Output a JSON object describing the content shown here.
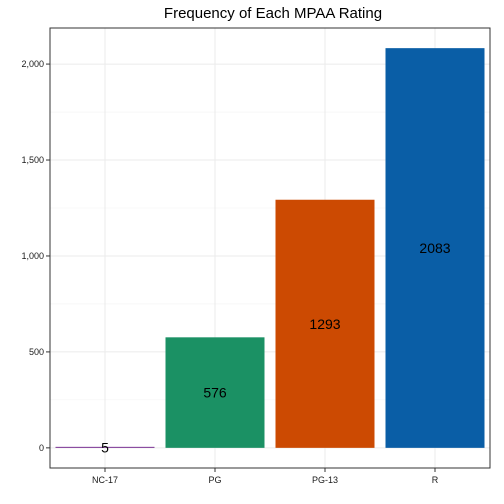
{
  "chart_data": {
    "type": "bar",
    "title": "Frequency of Each MPAA Rating",
    "xlabel": "",
    "ylabel": "",
    "categories": [
      "NC-17",
      "PG",
      "PG-13",
      "R"
    ],
    "values": [
      5,
      576,
      1293,
      2083
    ],
    "value_labels": [
      "5",
      "576",
      "1293",
      "2083"
    ],
    "colors": [
      "#7B3294",
      "#1B9164",
      "#CC4A02",
      "#0A5EA6"
    ],
    "ylim": [
      -105,
      2188
    ],
    "yticks": [
      0,
      500,
      1000,
      1500,
      2000
    ],
    "ytick_labels": [
      "0",
      "500",
      "1,000",
      "1,500",
      "2,000"
    ],
    "grid": true,
    "legend": "none"
  }
}
